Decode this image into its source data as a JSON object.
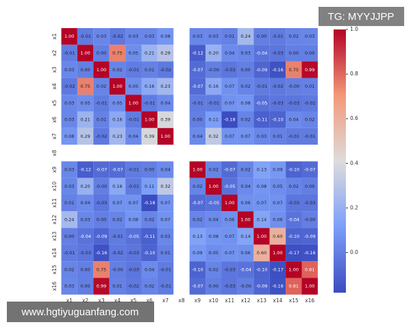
{
  "chart_data": {
    "type": "heatmap",
    "categories": [
      "x1",
      "x2",
      "x3",
      "x4",
      "x5",
      "x6",
      "x7",
      "x8",
      "x9",
      "x10",
      "x11",
      "x12",
      "x13",
      "x14",
      "x15",
      "x16"
    ],
    "values": [
      [
        1.0,
        -0.01,
        0.03,
        -0.02,
        0.03,
        0.03,
        0.08,
        null,
        0.03,
        0.03,
        0.01,
        0.24,
        0.0,
        -0.01,
        0.02,
        0.03
      ],
      [
        -0.01,
        1.0,
        0.0,
        0.75,
        0.05,
        0.21,
        0.29,
        null,
        -0.12,
        0.2,
        0.04,
        0.03,
        -0.04,
        -0.03,
        0.0,
        0.0
      ],
      [
        0.03,
        0.0,
        1.0,
        0.02,
        -0.01,
        0.01,
        -0.02,
        null,
        -0.07,
        0,
        -0.03,
        0.0,
        -0.09,
        -0.16,
        0.75,
        0.99
      ],
      [
        -0.02,
        0.75,
        0.02,
        1.0,
        0.05,
        0.16,
        0.23,
        null,
        -0.07,
        0.16,
        0.07,
        0.02,
        -0.01,
        -0.02,
        0,
        0.01
      ],
      [
        0.03,
        0.05,
        -0.01,
        0.05,
        1.0,
        -0.01,
        0.04,
        null,
        -0.01,
        -0.01,
        0.07,
        0.08,
        -0.05,
        -0.03,
        -0.03,
        -0.02
      ],
      [
        0.03,
        0.21,
        0.01,
        0.16,
        -0.01,
        1.0,
        0.39,
        null,
        0.0,
        0.11,
        -0.18,
        0.02,
        -0.11,
        -0.1,
        0.04,
        0.02
      ],
      [
        0.08,
        0.29,
        -0.02,
        0.23,
        0.04,
        0.39,
        1.0,
        null,
        0.04,
        0.32,
        0.07,
        0.07,
        0.03,
        0.01,
        -0.01,
        -0.01
      ],
      [
        null,
        null,
        null,
        null,
        null,
        null,
        null,
        null,
        null,
        null,
        null,
        null,
        null,
        null,
        null,
        null
      ],
      [
        0.03,
        -0.12,
        -0.07,
        -0.07,
        -0.01,
        0.0,
        0.04,
        null,
        1.0,
        0.02,
        -0.07,
        0.02,
        0.13,
        0.09,
        -0.1,
        -0.07
      ],
      [
        0.03,
        0.2,
        0,
        0.16,
        -0.01,
        0.11,
        0.32,
        null,
        0.02,
        1.0,
        -0.05,
        0.04,
        0.08,
        0.05,
        0.02,
        0.0
      ],
      [
        0.01,
        0.04,
        -0.03,
        0.07,
        0.07,
        -0.18,
        0.07,
        null,
        -0.07,
        -0.05,
        1.0,
        0.06,
        0.07,
        0.07,
        -0.03,
        -0.03
      ],
      [
        0.24,
        0.03,
        0.0,
        0.02,
        0.08,
        0.02,
        0.07,
        null,
        0.02,
        0.04,
        0.06,
        1.0,
        0.14,
        0.06,
        -0.04,
        0
      ],
      [
        0.0,
        -0.04,
        -0.09,
        -0.01,
        -0.05,
        -0.11,
        0.03,
        null,
        0.13,
        0.08,
        0.07,
        0.14,
        1.0,
        0.6,
        -0.1,
        -0.09
      ],
      [
        -0.01,
        -0.03,
        -0.16,
        -0.02,
        -0.03,
        -0.1,
        0.01,
        null,
        0.09,
        0.05,
        0.07,
        0.06,
        0.6,
        1.0,
        -0.17,
        -0.16
      ],
      [
        0.02,
        0.0,
        0.75,
        0,
        -0.03,
        0.04,
        -0.01,
        null,
        -0.1,
        0.02,
        -0.03,
        -0.04,
        -0.1,
        -0.17,
        1.0,
        0.81
      ],
      [
        0.03,
        0.0,
        0.99,
        0.01,
        -0.02,
        0.02,
        -0.01,
        null,
        -0.07,
        0.0,
        -0.03,
        0,
        -0.09,
        -0.16,
        0.81,
        1.0
      ]
    ],
    "value_labels": [
      [
        "1.00",
        "-0.01",
        "0.03",
        "-0.02",
        "0.03",
        "0.03",
        "0.08",
        null,
        "0.03",
        "0.03",
        "0.01",
        "0.24",
        "0.00",
        "-0.01",
        "0.02",
        "0.03"
      ],
      [
        "-0.01",
        "1.00",
        "0.00",
        "0.75",
        "0.05",
        "0.21",
        "0.29",
        null,
        "-0.12",
        "0.20",
        "0.04",
        "0.03",
        "-0.04",
        "-0.03",
        "0.00",
        "0.00"
      ],
      [
        "0.03",
        "0.00",
        "1.00",
        "0.02",
        "-0.01",
        "0.01",
        "-0.02",
        null,
        "-0.07",
        "-0.00",
        "-0.03",
        "0.00",
        "-0.09",
        "-0.16",
        "0.75",
        "0.99"
      ],
      [
        "-0.02",
        "0.75",
        "0.02",
        "1.00",
        "0.05",
        "0.16",
        "0.23",
        null,
        "-0.07",
        "0.16",
        "0.07",
        "0.02",
        "-0.01",
        "-0.02",
        "-0.00",
        "0.01"
      ],
      [
        "0.03",
        "0.05",
        "-0.01",
        "0.05",
        "1.00",
        "-0.01",
        "0.04",
        null,
        "-0.01",
        "-0.01",
        "0.07",
        "0.08",
        "-0.05",
        "-0.03",
        "-0.03",
        "-0.02"
      ],
      [
        "0.03",
        "0.21",
        "0.01",
        "0.16",
        "-0.01",
        "1.00",
        "0.39",
        null,
        "0.00",
        "0.11",
        "-0.18",
        "0.02",
        "-0.11",
        "-0.10",
        "0.04",
        "0.02"
      ],
      [
        "0.08",
        "0.29",
        "-0.02",
        "0.23",
        "0.04",
        "0.39",
        "1.00",
        null,
        "0.04",
        "0.32",
        "0.07",
        "0.07",
        "0.03",
        "0.01",
        "-0.01",
        "-0.01"
      ],
      [
        null,
        null,
        null,
        null,
        null,
        null,
        null,
        null,
        null,
        null,
        null,
        null,
        null,
        null,
        null,
        null
      ],
      [
        "0.03",
        "-0.12",
        "-0.07",
        "-0.07",
        "-0.01",
        "0.00",
        "0.04",
        null,
        "1.00",
        "0.02",
        "-0.07",
        "0.02",
        "0.13",
        "0.09",
        "-0.10",
        "-0.07"
      ],
      [
        "0.03",
        "0.20",
        "-0.00",
        "0.16",
        "-0.01",
        "0.11",
        "0.32",
        null,
        "0.02",
        "1.00",
        "-0.05",
        "0.04",
        "0.08",
        "0.05",
        "0.02",
        "0.00"
      ],
      [
        "0.01",
        "0.04",
        "-0.03",
        "0.07",
        "0.07",
        "-0.18",
        "0.07",
        null,
        "-0.07",
        "-0.05",
        "1.00",
        "0.06",
        "0.07",
        "0.07",
        "-0.03",
        "-0.03"
      ],
      [
        "0.24",
        "0.03",
        "0.00",
        "0.02",
        "0.08",
        "0.02",
        "0.07",
        null,
        "0.02",
        "0.04",
        "0.06",
        "1.00",
        "0.14",
        "0.06",
        "-0.04",
        "-0.00"
      ],
      [
        "0.00",
        "-0.04",
        "-0.09",
        "-0.01",
        "-0.05",
        "-0.11",
        "0.03",
        null,
        "0.13",
        "0.08",
        "0.07",
        "0.14",
        "1.00",
        "0.60",
        "-0.10",
        "-0.09"
      ],
      [
        "-0.01",
        "-0.03",
        "-0.16",
        "-0.02",
        "-0.03",
        "-0.10",
        "0.01",
        null,
        "0.09",
        "0.05",
        "0.07",
        "0.06",
        "0.60",
        "1.00",
        "-0.17",
        "-0.16"
      ],
      [
        "0.02",
        "0.00",
        "0.75",
        "-0.00",
        "-0.03",
        "0.04",
        "-0.01",
        null,
        "-0.10",
        "0.02",
        "-0.03",
        "-0.04",
        "-0.10",
        "-0.17",
        "1.00",
        "0.81"
      ],
      [
        "0.03",
        "0.00",
        "0.99",
        "0.01",
        "-0.02",
        "0.02",
        "-0.01",
        null,
        "-0.07",
        "0.00",
        "-0.03",
        "-0.00",
        "-0.09",
        "-0.16",
        "0.81",
        "1.00"
      ]
    ],
    "colormap": "coolwarm",
    "clim": [
      -0.18,
      1.0
    ],
    "cticks": [
      {
        "value": 0,
        "label": "0.0"
      },
      0.2,
      0.4,
      0.6,
      0.8,
      {
        "value": 1,
        "label": "1.0"
      }
    ]
  },
  "watermarks": {
    "top": "TG: MYYJJPP",
    "bottom": "www.hgtiyuguanfang.com"
  }
}
